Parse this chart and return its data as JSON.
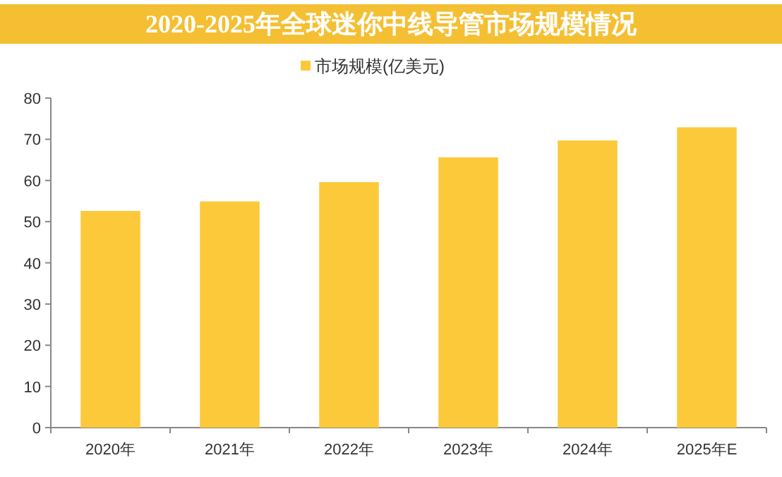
{
  "chart_data": {
    "type": "bar",
    "title": "2020-2025年全球迷你中线导管市场规模情况",
    "categories": [
      "2020年",
      "2021年",
      "2022年",
      "2023年",
      "2024年",
      "2025年E"
    ],
    "series": [
      {
        "name": "市场规模(亿美元)",
        "color": "#fcc93a",
        "values": [
          52.6,
          54.9,
          59.6,
          65.6,
          69.7,
          72.9
        ]
      }
    ],
    "ylim": [
      0,
      80
    ],
    "yticks": [
      0,
      10,
      20,
      30,
      40,
      50,
      60,
      70,
      80
    ],
    "legend": "top",
    "grid": false
  }
}
